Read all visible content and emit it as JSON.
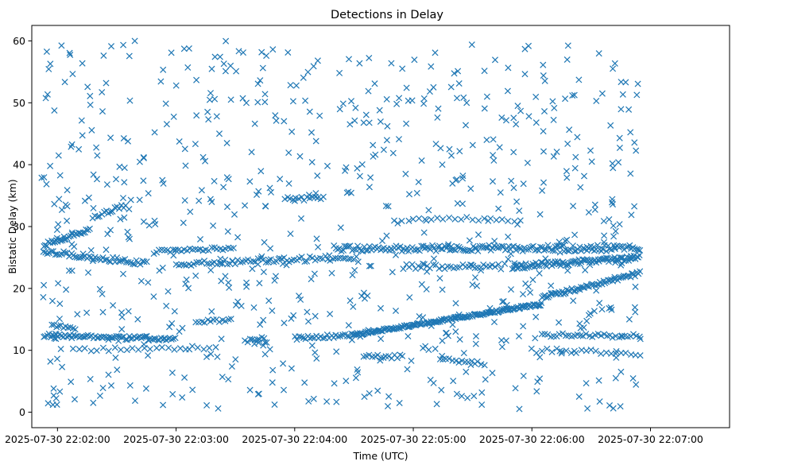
{
  "chart_data": {
    "type": "scatter",
    "title": "Detections in Delay",
    "xlabel": "Time (UTC)",
    "ylabel": "Bistatic Delay (km)",
    "x_unit": "seconds since 2025-07-30 22:02:00 UTC",
    "xlim": [
      -13,
      340
    ],
    "ylim": [
      -2.5,
      62.5
    ],
    "x_ticks": [
      0,
      60,
      120,
      180,
      240,
      300
    ],
    "x_tick_labels": [
      "2025-07-30 22:02:00",
      "2025-07-30 22:03:00",
      "2025-07-30 22:04:00",
      "2025-07-30 22:05:00",
      "2025-07-30 22:06:00",
      "2025-07-30 22:07:00"
    ],
    "y_ticks": [
      0,
      10,
      20,
      30,
      40,
      50,
      60
    ],
    "y_tick_labels": [
      "0",
      "10",
      "20",
      "30",
      "40",
      "50",
      "60"
    ],
    "grid": false,
    "marker": "x",
    "color": "#1f77b4",
    "x_range": [
      -8,
      295
    ],
    "series": [
      {
        "name": "detections",
        "tracks": [
          {
            "x": [
              -7,
              16
            ],
            "y": [
              27.0,
              29.5
            ],
            "step": 0.8,
            "jitter": 0.3
          },
          {
            "x": [
              -7,
              45
            ],
            "y": [
              26.0,
              24.0
            ],
            "step": 1.0,
            "jitter": 0.4
          },
          {
            "x": [
              18,
              35
            ],
            "y": [
              31.5,
              33.5
            ],
            "step": 1.1,
            "jitter": 0.3
          },
          {
            "x": [
              -7,
              60
            ],
            "y": [
              12.4,
              11.8
            ],
            "step": 0.9,
            "jitter": 0.3
          },
          {
            "x": [
              -3,
              10
            ],
            "y": [
              14.0,
              13.5
            ],
            "step": 1.2,
            "jitter": 0.3
          },
          {
            "x": [
              8,
              80
            ],
            "y": [
              10.0,
              10.5
            ],
            "step": 3.0,
            "jitter": 0.3
          },
          {
            "x": [
              50,
              90
            ],
            "y": [
              26.0,
              26.5
            ],
            "step": 1.4,
            "jitter": 0.3
          },
          {
            "x": [
              60,
              150
            ],
            "y": [
              24.0,
              25.0
            ],
            "step": 1.3,
            "jitter": 0.4
          },
          {
            "x": [
              70,
              88
            ],
            "y": [
              14.5,
              15.0
            ],
            "step": 1.5,
            "jitter": 0.3
          },
          {
            "x": [
              95,
              105
            ],
            "y": [
              11.5,
              12.0
            ],
            "step": 1.2,
            "jitter": 0.3
          },
          {
            "x": [
              120,
              155
            ],
            "y": [
              12.0,
              12.5
            ],
            "step": 1.1,
            "jitter": 0.3
          },
          {
            "x": [
              150,
              245
            ],
            "y": [
              12.5,
              17.5
            ],
            "step": 0.6,
            "jitter": 0.2
          },
          {
            "x": [
              140,
              295
            ],
            "y": [
              26.5,
              26.5
            ],
            "step": 0.9,
            "jitter": 0.5
          },
          {
            "x": [
              230,
              295
            ],
            "y": [
              23.5,
              25.0
            ],
            "step": 0.7,
            "jitter": 0.4
          },
          {
            "x": [
              245,
              295
            ],
            "y": [
              18.5,
              22.5
            ],
            "step": 0.8,
            "jitter": 0.3
          },
          {
            "x": [
              175,
              225
            ],
            "y": [
              23.5,
              23.5
            ],
            "step": 1.5,
            "jitter": 0.4
          },
          {
            "x": [
              155,
              175
            ],
            "y": [
              9.0,
              9.0
            ],
            "step": 1.4,
            "jitter": 0.3
          },
          {
            "x": [
              195,
              215
            ],
            "y": [
              8.5,
              8.0
            ],
            "step": 1.6,
            "jitter": 0.3
          },
          {
            "x": [
              240,
              295
            ],
            "y": [
              10.0,
              9.5
            ],
            "step": 2.5,
            "jitter": 0.4
          },
          {
            "x": [
              245,
              295
            ],
            "y": [
              12.5,
              12.3
            ],
            "step": 1.5,
            "jitter": 0.3
          },
          {
            "x": [
              180,
              235
            ],
            "y": [
              31.5,
              31.0
            ],
            "step": 3.0,
            "jitter": 0.3
          },
          {
            "x": [
              115,
              135
            ],
            "y": [
              34.5,
              34.5
            ],
            "step": 1.4,
            "jitter": 0.3
          }
        ],
        "noise_count": 750,
        "noise_seed": 20250730
      }
    ]
  }
}
